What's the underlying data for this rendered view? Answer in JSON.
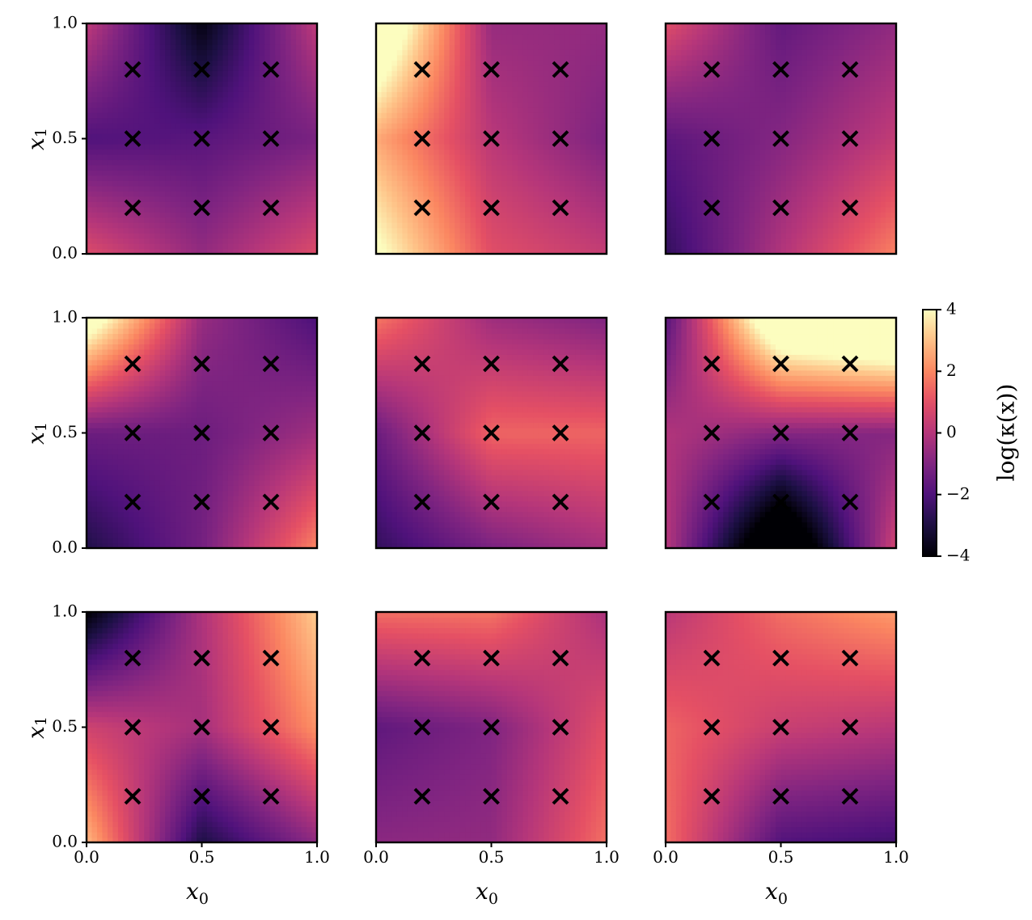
{
  "chart_data": {
    "type": "heatmap",
    "layout": "3x3 grid of heatmaps with shared colorbar",
    "domain": {
      "x": [
        0.0,
        1.0
      ],
      "y": [
        0.0,
        1.0
      ]
    },
    "ticks": {
      "values": [
        0.0,
        0.5,
        1.0
      ],
      "labels": [
        "0.0",
        "0.5",
        "1.0"
      ]
    },
    "xlabel": {
      "main": "x",
      "sub": "0"
    },
    "ylabel": {
      "main": "x",
      "sub": "1"
    },
    "colorbar": {
      "label": "log(κ(x))",
      "range": [
        -4,
        4
      ],
      "ticks": [
        4,
        2,
        0,
        -2,
        -4
      ],
      "tick_labels": [
        "4",
        "2",
        "0",
        "−2",
        "−4"
      ],
      "colormap": "magma"
    },
    "markers": {
      "symbol": "×",
      "color": "#000000",
      "points": [
        [
          0.2,
          0.2
        ],
        [
          0.5,
          0.2
        ],
        [
          0.8,
          0.2
        ],
        [
          0.2,
          0.5
        ],
        [
          0.5,
          0.5
        ],
        [
          0.8,
          0.5
        ],
        [
          0.2,
          0.8
        ],
        [
          0.5,
          0.8
        ],
        [
          0.8,
          0.8
        ]
      ]
    },
    "panels": [
      {
        "row": 0,
        "col": 0,
        "grid_values": [
          [
            -0.6,
            -1.1,
            -0.4
          ],
          [
            -1.9,
            -1.8,
            -1.4
          ],
          [
            -1.6,
            -3.0,
            -1.4
          ]
        ]
      },
      {
        "row": 0,
        "col": 1,
        "grid_values": [
          [
            2.4,
            0.6,
            0.1
          ],
          [
            1.6,
            0.1,
            -0.6
          ],
          [
            2.6,
            -0.3,
            -0.6
          ]
        ]
      },
      {
        "row": 0,
        "col": 2,
        "grid_values": [
          [
            -1.5,
            -0.4,
            0.6
          ],
          [
            -1.4,
            -0.9,
            -0.2
          ],
          [
            -0.6,
            -1.3,
            -0.7
          ]
        ]
      },
      {
        "row": 1,
        "col": 0,
        "grid_values": [
          [
            -1.9,
            -1.3,
            0.1
          ],
          [
            -1.4,
            -1.4,
            -0.8
          ],
          [
            1.1,
            -0.9,
            -1.2
          ]
        ]
      },
      {
        "row": 1,
        "col": 1,
        "grid_values": [
          [
            -1.3,
            -0.1,
            0.2
          ],
          [
            -0.3,
            1.4,
            1.4
          ],
          [
            0.4,
            0.3,
            0.1
          ]
        ]
      },
      {
        "row": 1,
        "col": 2,
        "grid_values": [
          [
            -1.6,
            -4.0,
            -1.6
          ],
          [
            -0.4,
            -0.9,
            -0.9
          ],
          [
            0.6,
            3.2,
            3.6
          ]
        ]
      },
      {
        "row": 2,
        "col": 0,
        "grid_values": [
          [
            0.4,
            -1.9,
            -0.5
          ],
          [
            0.2,
            -0.3,
            1.2
          ],
          [
            -1.4,
            -0.2,
            1.6
          ]
        ]
      },
      {
        "row": 2,
        "col": 1,
        "grid_values": [
          [
            -1.0,
            -0.8,
            0.5
          ],
          [
            -1.4,
            -1.0,
            0.2
          ],
          [
            0.4,
            0.6,
            0.4
          ]
        ]
      },
      {
        "row": 2,
        "col": 2,
        "grid_values": [
          [
            0.5,
            -1.0,
            -1.2
          ],
          [
            1.0,
            0.4,
            0.2
          ],
          [
            0.8,
            1.1,
            1.3
          ]
        ]
      }
    ]
  }
}
